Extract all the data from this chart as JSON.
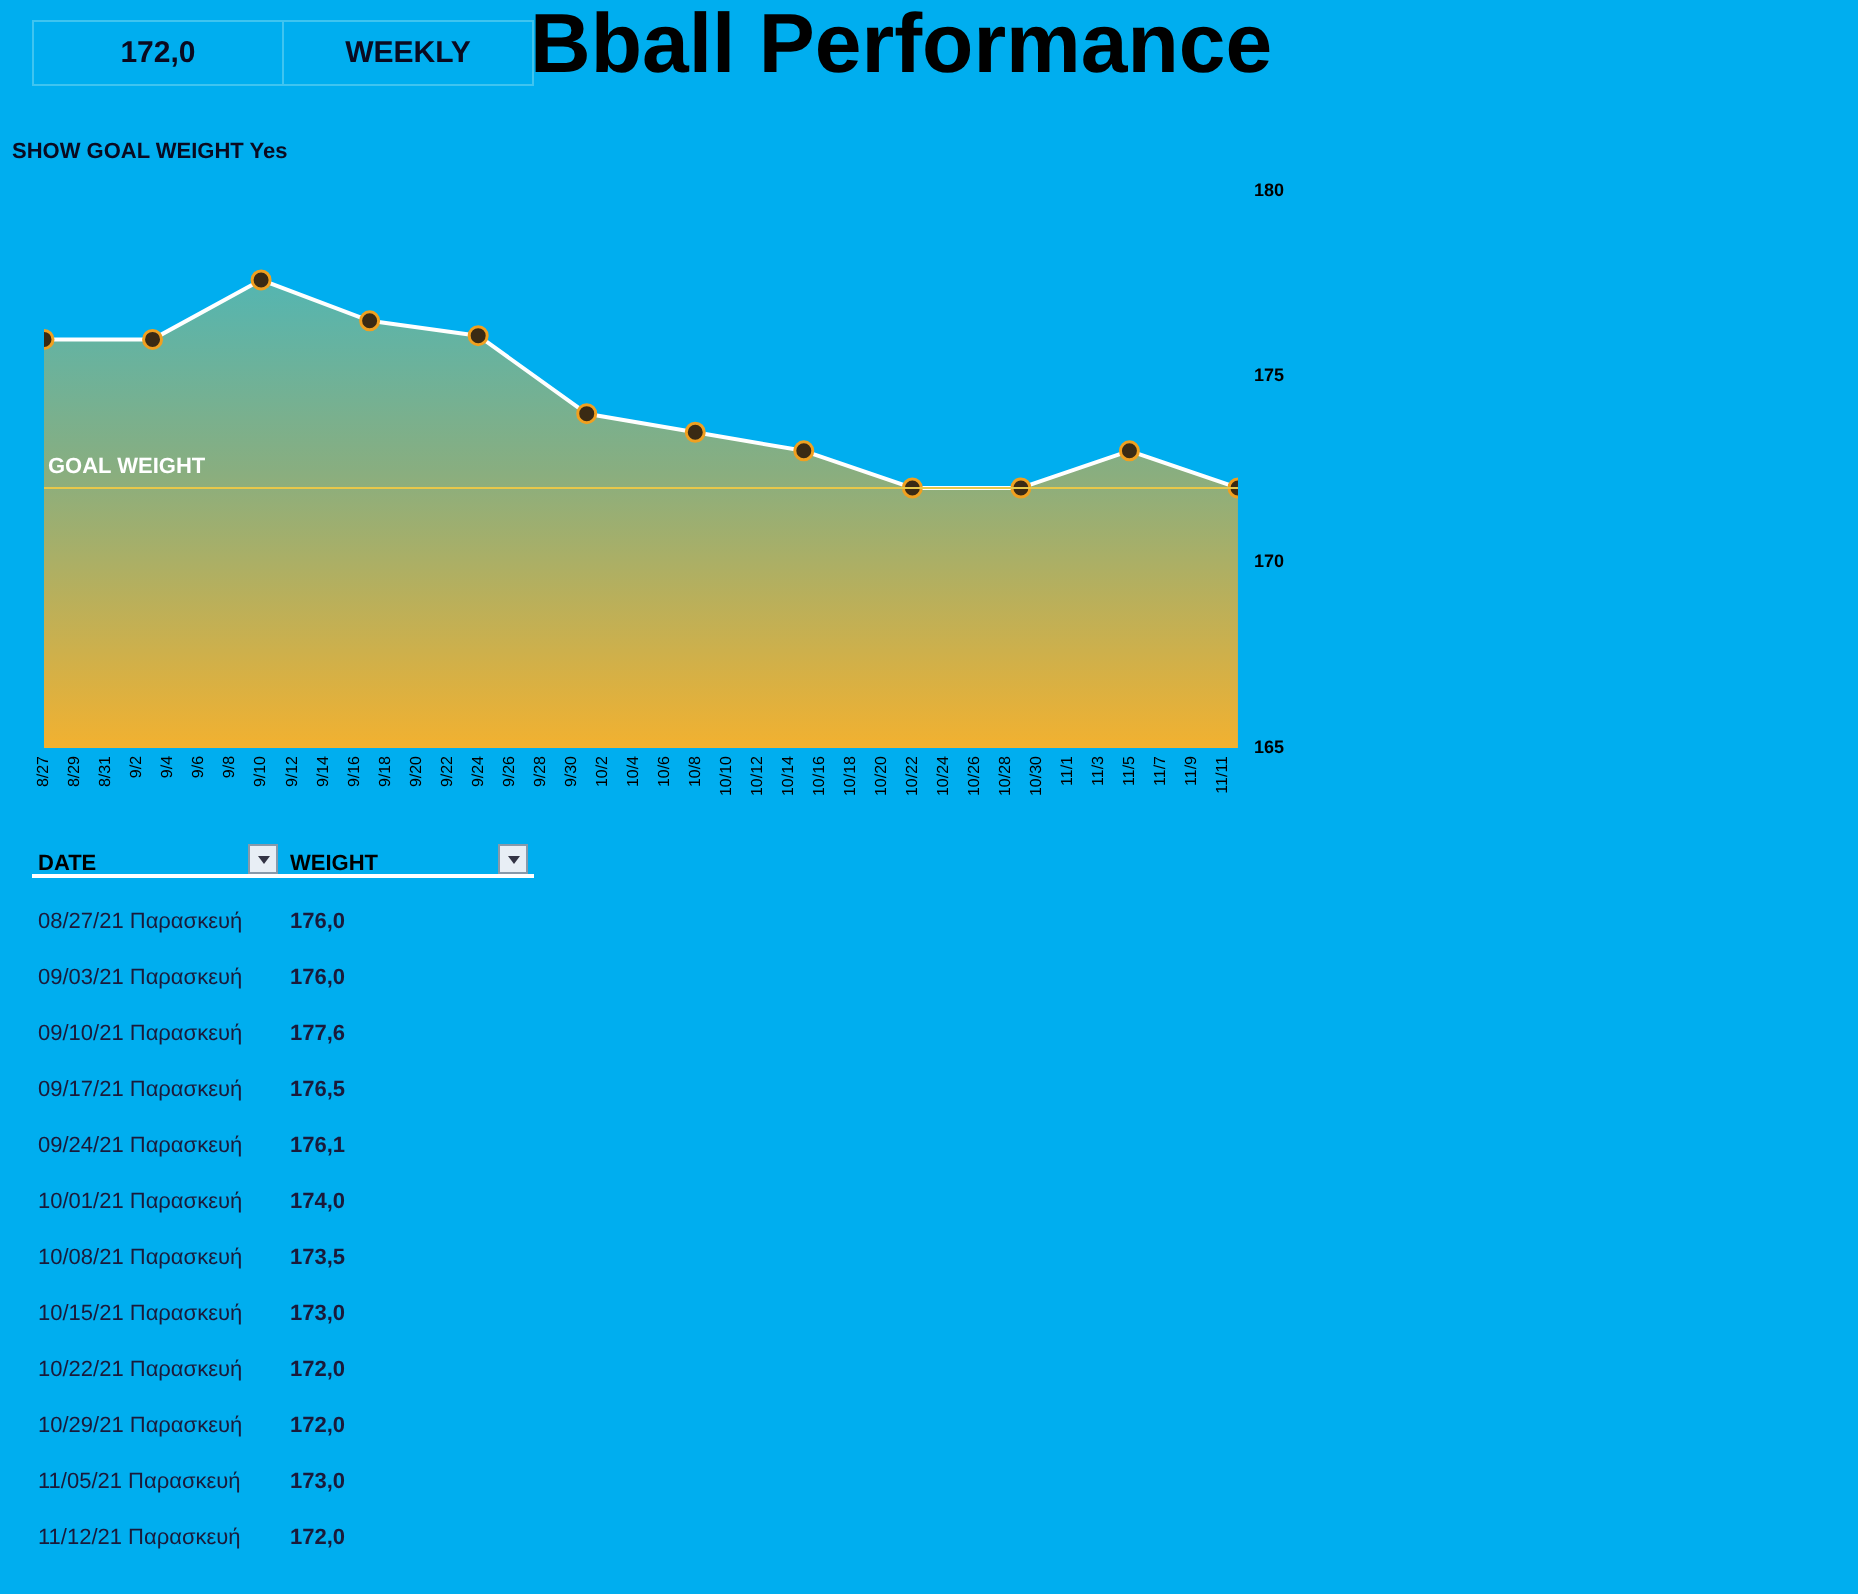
{
  "chart_data": {
    "type": "area",
    "title": "Bball Performance",
    "x": [
      "--08-27",
      "--09-03",
      "--09-10",
      "--09-17",
      "--09-24",
      "--10-01",
      "--10-08",
      "--10-15",
      "--10-22",
      "--10-29",
      "--11-05",
      "--11-12"
    ],
    "series": [
      {
        "color": "#ffffff",
        "values": [
          176.0,
          176.0,
          177.6,
          176.5,
          176.1,
          174.0,
          173.5,
          173.0,
          172.0,
          172.0,
          173.0,
          172.0
        ]
      }
    ],
    "xlim": [
      "--08-27",
      "--11-12"
    ],
    "xticks": [
      {
        "value": "--08-27",
        "label": "8/27"
      },
      {
        "value": "--08-29",
        "label": "8/29"
      },
      {
        "value": "--08-31",
        "label": "8/31"
      },
      {
        "value": "--09-02",
        "label": "9/2"
      },
      {
        "value": "--09-04",
        "label": "9/4"
      },
      {
        "value": "--09-06",
        "label": "9/6"
      },
      {
        "value": "--09-08",
        "label": "9/8"
      },
      {
        "value": "--09-10",
        "label": "9/10"
      },
      {
        "value": "--09-12",
        "label": "9/12"
      },
      {
        "value": "--09-14",
        "label": "9/14"
      },
      {
        "value": "--09-16",
        "label": "9/16"
      },
      {
        "value": "--09-18",
        "label": "9/18"
      },
      {
        "value": "--09-20",
        "label": "9/20"
      },
      {
        "value": "--09-22",
        "label": "9/22"
      },
      {
        "value": "--09-24",
        "label": "9/24"
      },
      {
        "value": "--09-26",
        "label": "9/26"
      },
      {
        "value": "--09-28",
        "label": "9/28"
      },
      {
        "value": "--09-30",
        "label": "9/30"
      },
      {
        "value": "--10-02",
        "label": "10/2"
      },
      {
        "value": "--10-04",
        "label": "10/4"
      },
      {
        "value": "--10-06",
        "label": "10/6"
      },
      {
        "value": "--10-08",
        "label": "10/8"
      },
      {
        "value": "--10-10",
        "label": "10/10"
      },
      {
        "value": "--10-12",
        "label": "10/12"
      },
      {
        "value": "--10-14",
        "label": "10/14"
      },
      {
        "value": "--10-16",
        "label": "10/16"
      },
      {
        "value": "--10-18",
        "label": "10/18"
      },
      {
        "value": "--10-20",
        "label": "10/20"
      },
      {
        "value": "--10-22",
        "label": "10/22"
      },
      {
        "value": "--10-24",
        "label": "10/24"
      },
      {
        "value": "--10-26",
        "label": "10/26"
      },
      {
        "value": "--10-28",
        "label": "10/28"
      },
      {
        "value": "--10-30",
        "label": "10/30"
      },
      {
        "value": "--11-01",
        "label": "11/1"
      },
      {
        "value": "--11-03",
        "label": "11/3"
      },
      {
        "value": "--11-05",
        "label": "11/5"
      },
      {
        "value": "--11-07",
        "label": "11/7"
      },
      {
        "value": "--11-09",
        "label": "11/9"
      },
      {
        "value": "--11-11",
        "label": "11/11"
      }
    ],
    "ylim": [
      165,
      180
    ],
    "yticks": [
      165,
      170,
      175,
      180
    ],
    "ref_lines": [
      {
        "axis": "y",
        "value": 172,
        "label": "GOAL WEIGHT",
        "color": "#e8c84a"
      }
    ],
    "grid": false,
    "legend": false,
    "marker": "circle",
    "line_style": "solid",
    "annotations": [
      "172,0",
      "WEEKLY",
      "SHOW GOAL WEIGHT Yes",
      "DATE",
      "WEIGHT",
      "08/27/21 Παρασκευή",
      "09/03/21 Παρασκευή",
      "09/10/21 Παρασκευή",
      "09/17/21 Παρασκευή",
      "09/24/21 Παρασκευή",
      "10/01/21 Παρασκευή",
      "10/08/21 Παρασκευή",
      "10/15/21 Παρασκευή",
      "10/22/21 Παρασκευή",
      "10/29/21 Παρασκευή",
      "11/05/21 Παρασκευή",
      "11/12/21 Παρασκευή",
      "176,0",
      "176,0",
      "177,6",
      "176,5",
      "176,1",
      "174,0",
      "173,5",
      "173,0",
      "172,0",
      "172,0",
      "173,0",
      "172,0"
    ]
  }
}
